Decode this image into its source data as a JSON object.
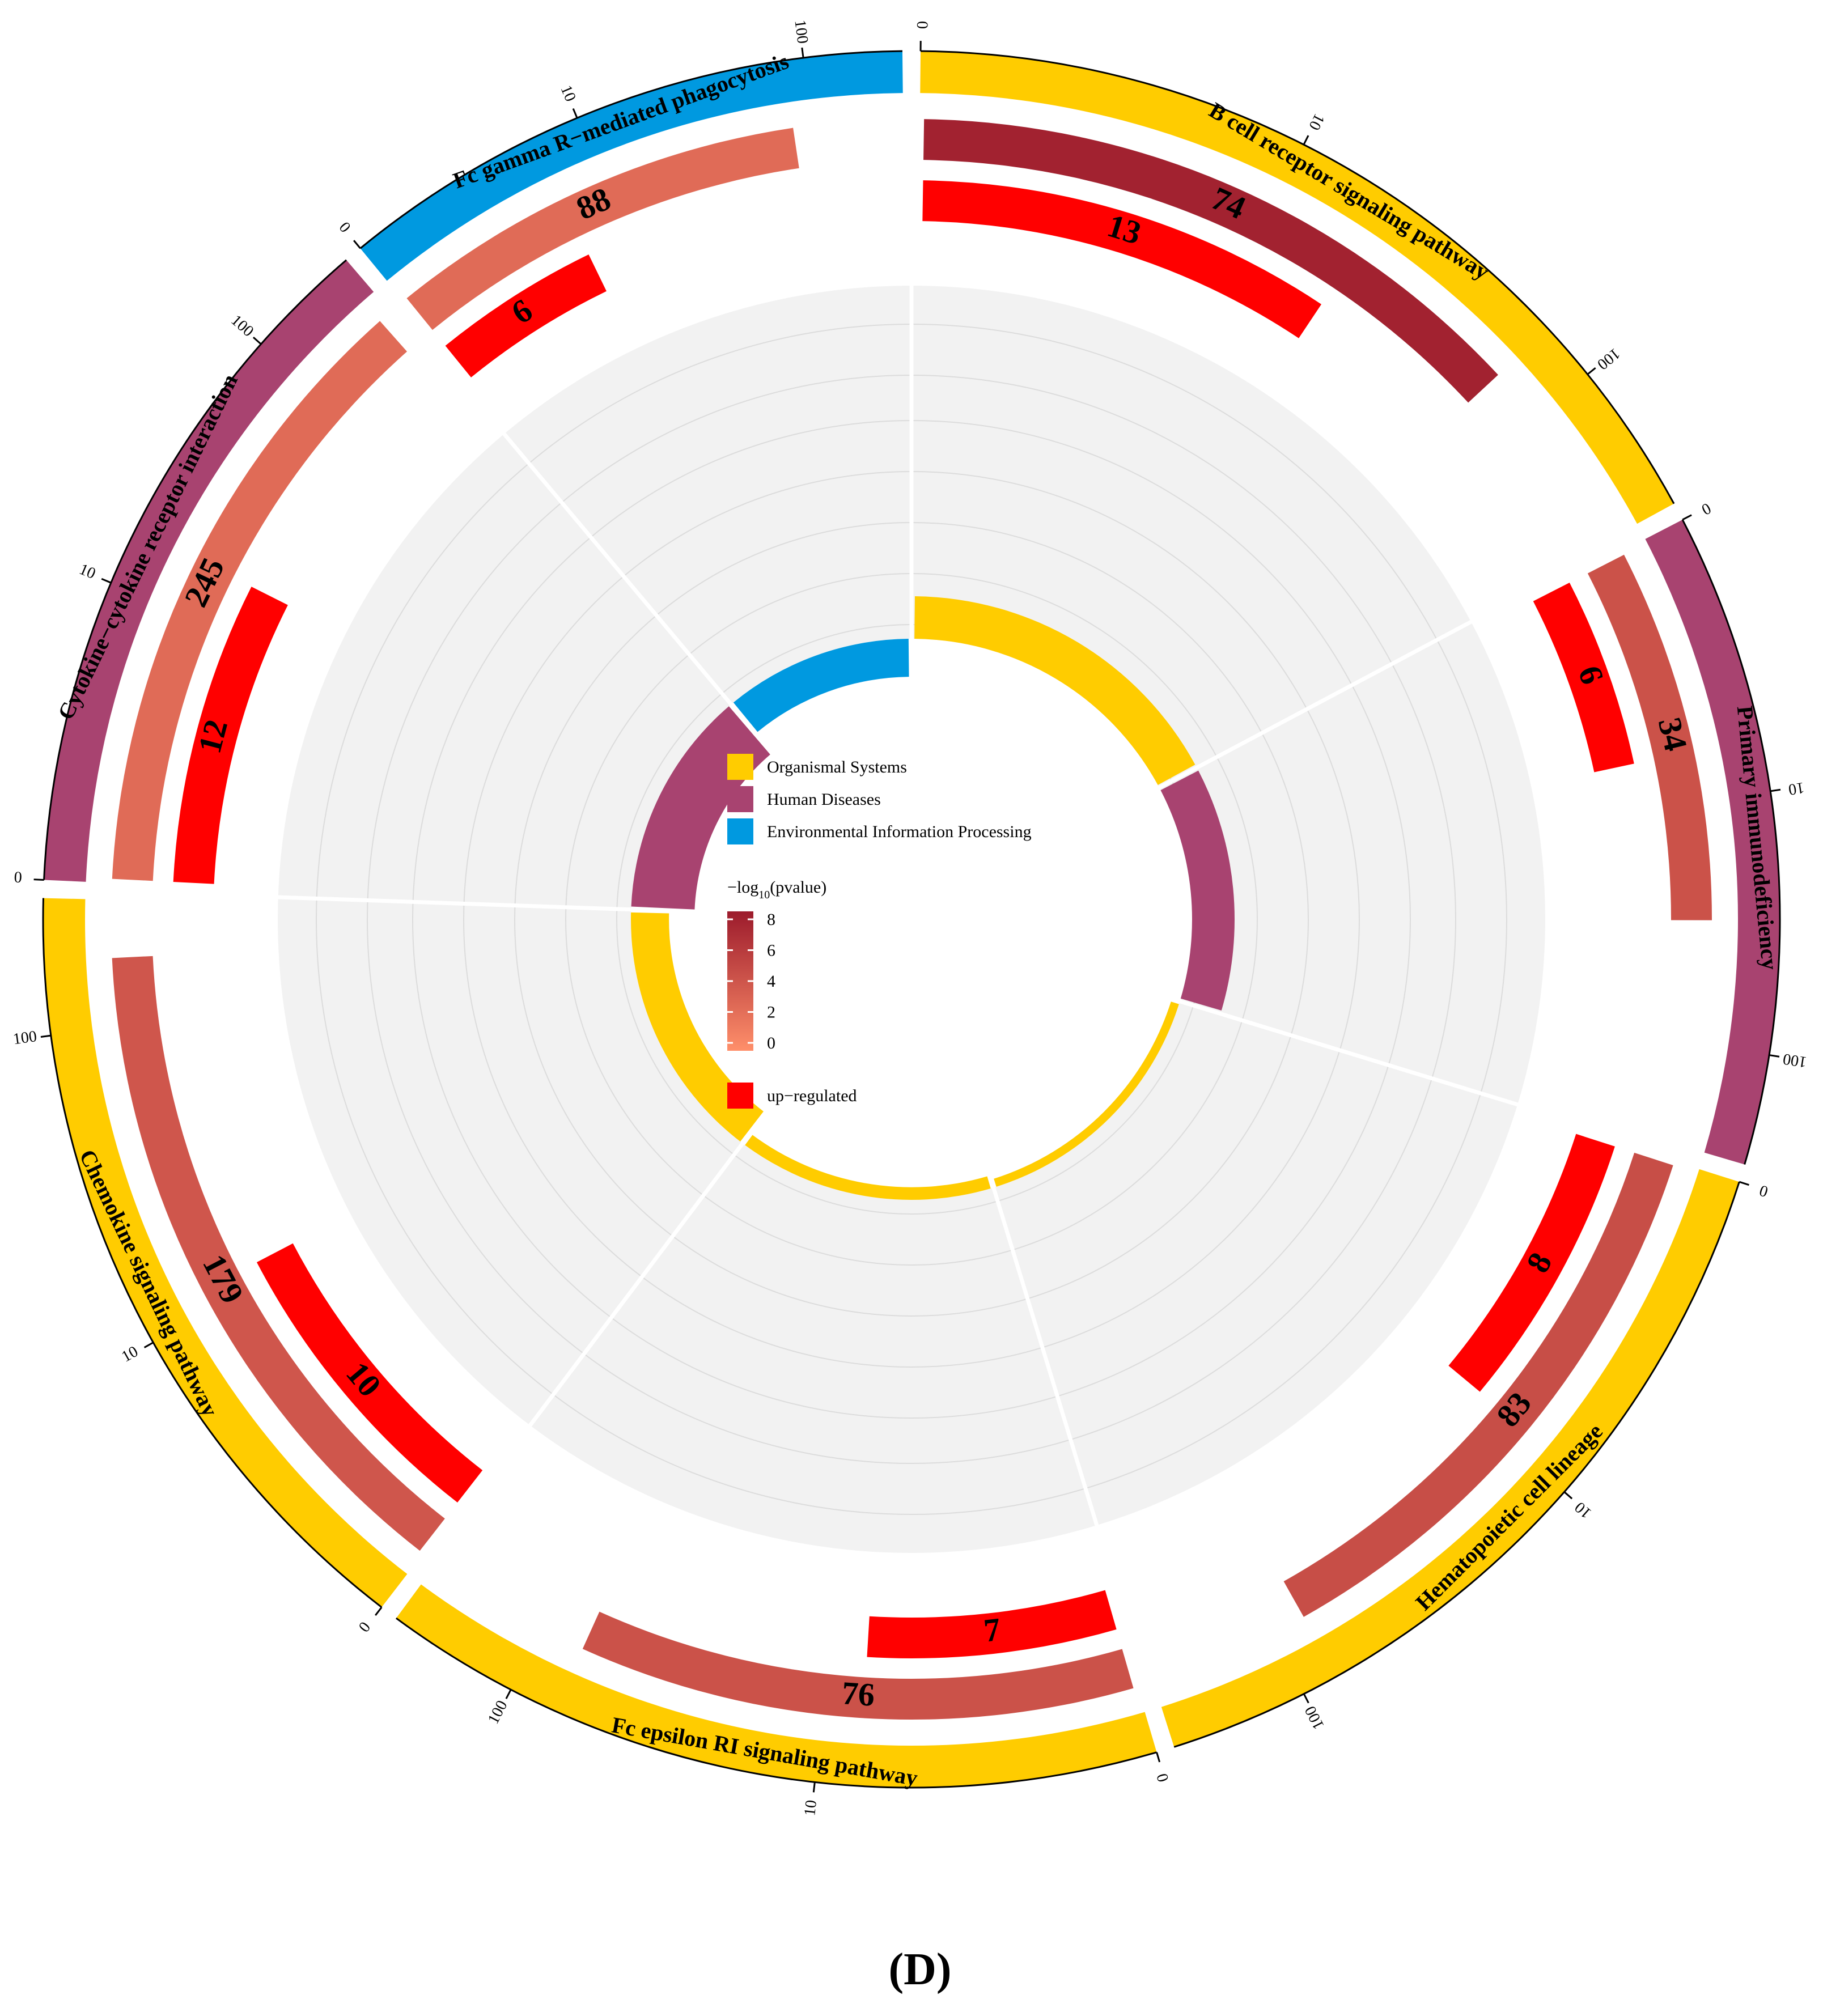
{
  "chart_data": {
    "type": "circos",
    "categories": [
      "B cell receptor signaling pathway",
      "Primary immunodeficiency",
      "Hematopoietic cell lineage",
      "Fc epsilon RI signaling pathway",
      "Chemokine signaling pathway",
      "Cytokine−cytokine receptor interaction",
      "Fc gamma R−mediated phagocytosis"
    ],
    "category_class": [
      "Organismal Systems",
      "Human Diseases",
      "Organismal Systems",
      "Organismal Systems",
      "Organismal Systems",
      "Human Diseases",
      "Environmental Information Processing"
    ],
    "background_genes": [
      74,
      34,
      83,
      76,
      179,
      245,
      88
    ],
    "neg_log10_pvalue": [
      7.5,
      4.2,
      4.5,
      4.2,
      3.9,
      2.5,
      2.5
    ],
    "up_regulated": [
      13,
      6,
      8,
      7,
      10,
      12,
      6
    ],
    "rich_factor": [
      0.64,
      0.64,
      0.4,
      0.38,
      0.26,
      0.14,
      0.26
    ],
    "sector_span": [
      62,
      45,
      56,
      54,
      55,
      48,
      40
    ],
    "axis_tick_labels": [
      "0",
      "10",
      "100"
    ],
    "legend": {
      "classes": [
        {
          "name": "Organismal Systems",
          "color": "#ffcc00"
        },
        {
          "name": "Human Diseases",
          "color": "#a84370"
        },
        {
          "name": "Environmental Information Processing",
          "color": "#0099e0"
        }
      ],
      "gradient_title_prefix": "−log",
      "gradient_title_sub": "10",
      "gradient_title_suffix": "(pvalue)",
      "gradient_ticks": [
        "8",
        "6",
        "4",
        "2",
        "0"
      ],
      "gradient_low": "#ff8f6a",
      "gradient_high": "#9c1b2c",
      "up_label": "up−regulated",
      "up_color": "#ff0000"
    }
  },
  "caption": "(D)"
}
